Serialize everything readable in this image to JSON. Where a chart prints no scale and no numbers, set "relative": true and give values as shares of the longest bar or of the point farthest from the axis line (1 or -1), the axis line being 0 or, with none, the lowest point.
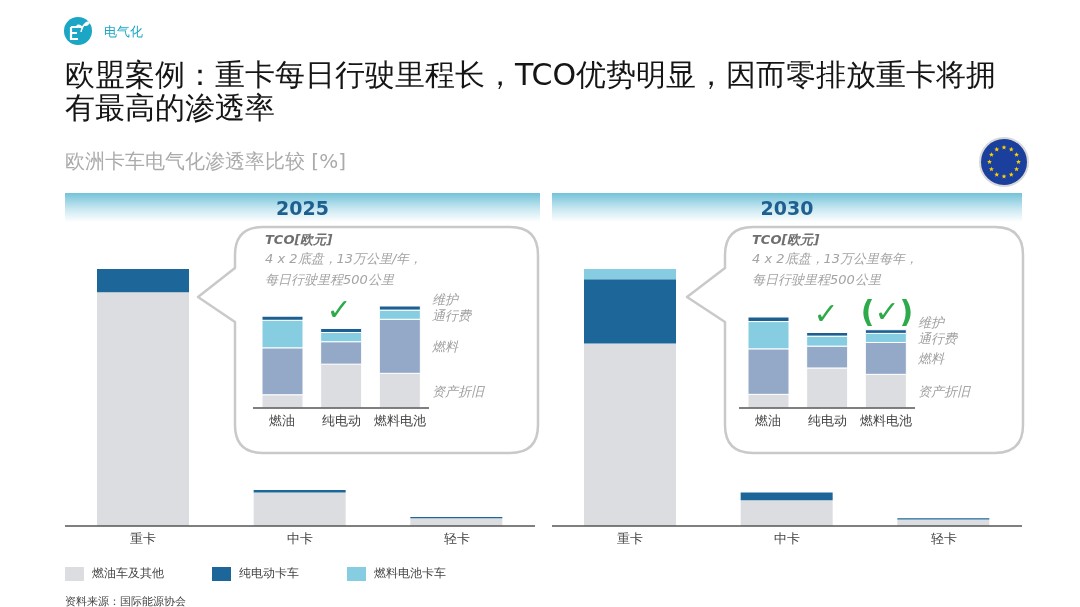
{
  "chart_data": [
    {
      "type": "other",
      "title": "欧盟案例：重卡每日行驶里程长，TCO优势明显，因而零排放重卡将拥有最高的渗透率",
      "subtitle": "欧洲卡车电气化渗透率比较 [%]",
      "annotations": [
        "电气化",
        "资料来源：国际能源协会"
      ]
    },
    {
      "type": "bar",
      "title": "2025",
      "categories": [
        "重卡",
        "中卡",
        "轻卡"
      ],
      "relative": true,
      "stacked": true,
      "legend": "bottom",
      "series": [
        {
          "name": "燃油车及其他",
          "color": "#dcdde0",
          "values": [
            0.91,
            0.13,
            0.03
          ]
        },
        {
          "name": "纯电动卡车",
          "color": "#1c6699",
          "values": [
            0.09,
            0.01,
            0.005
          ]
        },
        {
          "name": "燃料电池卡车",
          "color": "#86cde2",
          "values": [
            0,
            0,
            0
          ]
        }
      ]
    },
    {
      "type": "bar",
      "title": "TCO[欧元]",
      "subtitle": "4 x 2底盘，13万公里/年，每日行驶里程500公里",
      "categories": [
        "燃油",
        "纯电动",
        "燃料电池"
      ],
      "relative": true,
      "stacked": true,
      "series": [
        {
          "name": "资产折旧",
          "color": "#dcdde0",
          "values": [
            0.13,
            0.43,
            0.34
          ]
        },
        {
          "name": "燃料",
          "color": "#94a8c8",
          "values": [
            0.46,
            0.22,
            0.53
          ]
        },
        {
          "name": "通行费",
          "color": "#86cde2",
          "values": [
            0.27,
            0.09,
            0.09
          ]
        },
        {
          "name": "维护",
          "color": "#1c5f90",
          "values": [
            0.04,
            0.04,
            0.04
          ]
        }
      ],
      "annotations": [
        "✓"
      ]
    },
    {
      "type": "bar",
      "title": "2030",
      "categories": [
        "重卡",
        "中卡",
        "轻卡"
      ],
      "relative": true,
      "stacked": true,
      "series": [
        {
          "color": "#dcdde0",
          "values": [
            0.71,
            0.1,
            0.025
          ]
        },
        {
          "color": "#1c6699",
          "values": [
            0.25,
            0.03,
            0.005
          ]
        },
        {
          "color": "#86cde2",
          "values": [
            0.04,
            0,
            0
          ]
        }
      ]
    },
    {
      "type": "bar",
      "title": "TCO[欧元]",
      "subtitle": "4 x 2底盘，13万公里每年，每日行驶里程500公里",
      "categories": [
        "燃油",
        "纯电动",
        "燃料电池"
      ],
      "relative": true,
      "stacked": true,
      "series": [
        {
          "name": "资产折旧",
          "color": "#dcdde0",
          "values": [
            0.15,
            0.44,
            0.37
          ]
        },
        {
          "name": "燃料",
          "color": "#94a8c8",
          "values": [
            0.5,
            0.24,
            0.35
          ]
        },
        {
          "name": "通行费",
          "color": "#86cde2",
          "values": [
            0.3,
            0.11,
            0.1
          ]
        },
        {
          "name": "维护",
          "color": "#1c5f90",
          "values": [
            0.05,
            0.04,
            0.04
          ]
        }
      ],
      "annotations": [
        "✓",
        "(✓)"
      ]
    }
  ]
}
